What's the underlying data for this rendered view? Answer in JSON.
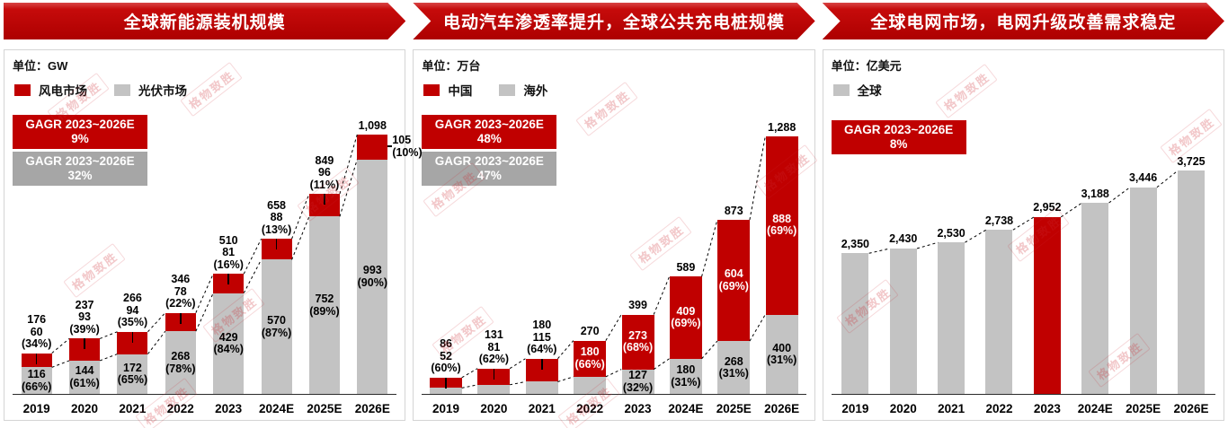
{
  "watermark": {
    "text": "格物致胜"
  },
  "colors": {
    "red": "#c00000",
    "gray": "#c3c3c3",
    "gray_box": "#a6a6a6"
  },
  "chart_data": [
    {
      "id": "new-energy-install",
      "type": "bar",
      "subtype": "stacked",
      "title": "全球新能源装机规模",
      "unit": "单位：GW",
      "legend": [
        {
          "name": "风电市场",
          "color_key": "red"
        },
        {
          "name": "光伏市场",
          "color_key": "gray"
        }
      ],
      "cagr": [
        {
          "line1": "GAGR 2023~2026E",
          "line2": "9%",
          "color_key": "red"
        },
        {
          "line1": "GAGR 2023~2026E",
          "line2": "32%",
          "color_key": "gray_box"
        }
      ],
      "categories": [
        "2019",
        "2020",
        "2021",
        "2022",
        "2023",
        "2024E",
        "2025E",
        "2026E"
      ],
      "series": [
        {
          "name": "风电市场",
          "color_key": "red",
          "values": [
            60,
            93,
            94,
            78,
            81,
            88,
            96,
            105
          ]
        },
        {
          "name": "光伏市场",
          "color_key": "gray",
          "values": [
            116,
            144,
            172,
            268,
            429,
            570,
            752,
            993
          ]
        }
      ],
      "totals_display": [
        "176",
        "237",
        "266",
        "346",
        "510",
        "658",
        "849",
        "1,098"
      ],
      "col_labels": [
        {
          "top": [
            "176",
            "60",
            "(34%)"
          ],
          "gray": [
            "116",
            "(66%)"
          ],
          "tick": true
        },
        {
          "top": [
            "237",
            "93",
            "(39%)"
          ],
          "gray": [
            "144",
            "(61%)"
          ],
          "tick": true
        },
        {
          "top": [
            "266",
            "94",
            "(35%)"
          ],
          "gray": [
            "172",
            "(65%)"
          ],
          "tick": true
        },
        {
          "top": [
            "346",
            "78",
            "(22%)"
          ],
          "gray": [
            "268",
            "(78%)"
          ],
          "tick": true
        },
        {
          "top": [
            "510",
            "81",
            "(16%)"
          ],
          "gray": [
            "429",
            "(84%)"
          ],
          "tick": true
        },
        {
          "top": [
            "658",
            "88",
            "(13%)"
          ],
          "gray": [
            "570",
            "(87%)"
          ],
          "tick": true
        },
        {
          "top": [
            "849",
            "96",
            "(11%)"
          ],
          "gray": [
            "752",
            "(89%)"
          ],
          "tick": true
        },
        {
          "top": [
            "1,098"
          ],
          "side": [
            "105",
            "(10%)"
          ],
          "gray": [
            "993",
            "(90%)"
          ],
          "tick": false,
          "side_tick": true
        }
      ]
    },
    {
      "id": "public-charging-piles",
      "type": "bar",
      "subtype": "stacked",
      "title": "电动汽车渗透率提升，全球公共充电桩规模",
      "unit": "单位：万台",
      "legend": [
        {
          "name": "中国",
          "color_key": "red"
        },
        {
          "name": "海外",
          "color_key": "gray"
        }
      ],
      "cagr": [
        {
          "line1": "GAGR 2023~2026E",
          "line2": "48%",
          "color_key": "red"
        },
        {
          "line1": "GAGR 2023~2026E",
          "line2": "47%",
          "color_key": "gray_box"
        }
      ],
      "categories": [
        "2019",
        "2020",
        "2021",
        "2022",
        "2023",
        "2024E",
        "2025E",
        "2026E"
      ],
      "series": [
        {
          "name": "中国",
          "color_key": "red",
          "values": [
            52,
            81,
            115,
            180,
            273,
            409,
            604,
            888
          ]
        },
        {
          "name": "海外",
          "color_key": "gray",
          "values": [
            34,
            50,
            65,
            90,
            127,
            180,
            268,
            400
          ]
        }
      ],
      "totals_display": [
        "86",
        "131",
        "180",
        "270",
        "399",
        "589",
        "873",
        "1,288"
      ],
      "col_labels": [
        {
          "top": [
            "86",
            "52",
            "(60%)"
          ],
          "tick": true
        },
        {
          "top": [
            "131",
            "81",
            "(62%)"
          ],
          "tick": true
        },
        {
          "top": [
            "180",
            "115",
            "(64%)"
          ],
          "tick": true
        },
        {
          "top": [
            "270"
          ],
          "red": [
            "180",
            "(66%)"
          ]
        },
        {
          "top": [
            "399"
          ],
          "red": [
            "273",
            "(68%)"
          ],
          "gray": [
            "127",
            "(32%)"
          ]
        },
        {
          "top": [
            "589"
          ],
          "red": [
            "409",
            "(69%)"
          ],
          "gray": [
            "180",
            "(31%)"
          ]
        },
        {
          "top": [
            "873"
          ],
          "red": [
            "604",
            "(69%)"
          ],
          "gray": [
            "268",
            "(31%)"
          ]
        },
        {
          "top": [
            "1,288"
          ],
          "red": [
            "888",
            "(69%)"
          ],
          "gray": [
            "400",
            "(31%)"
          ]
        }
      ]
    },
    {
      "id": "global-grid-market",
      "type": "bar",
      "subtype": "single",
      "title": "全球电网市场，电网升级改善需求稳定",
      "unit": "单位：亿美元",
      "legend": [
        {
          "name": "全球",
          "color_key": "gray"
        }
      ],
      "cagr": [
        {
          "line1": "GAGR 2023~2026E",
          "line2": "8%",
          "color_key": "red"
        }
      ],
      "categories": [
        "2019",
        "2020",
        "2021",
        "2022",
        "2023",
        "2024E",
        "2025E",
        "2026E"
      ],
      "values": [
        2350,
        2430,
        2530,
        2738,
        2952,
        3188,
        3446,
        3725
      ],
      "highlight_index": 4,
      "totals_display": [
        "2,350",
        "2,430",
        "2,530",
        "2,738",
        "2,952",
        "3,188",
        "3,446",
        "3,725"
      ],
      "col_labels": [
        {
          "top": [
            "2,350"
          ]
        },
        {
          "top": [
            "2,430"
          ]
        },
        {
          "top": [
            "2,530"
          ]
        },
        {
          "top": [
            "2,738"
          ]
        },
        {
          "top": [
            "2,952"
          ]
        },
        {
          "top": [
            "3,188"
          ]
        },
        {
          "top": [
            "3,446"
          ]
        },
        {
          "top": [
            "3,725"
          ]
        }
      ]
    }
  ]
}
